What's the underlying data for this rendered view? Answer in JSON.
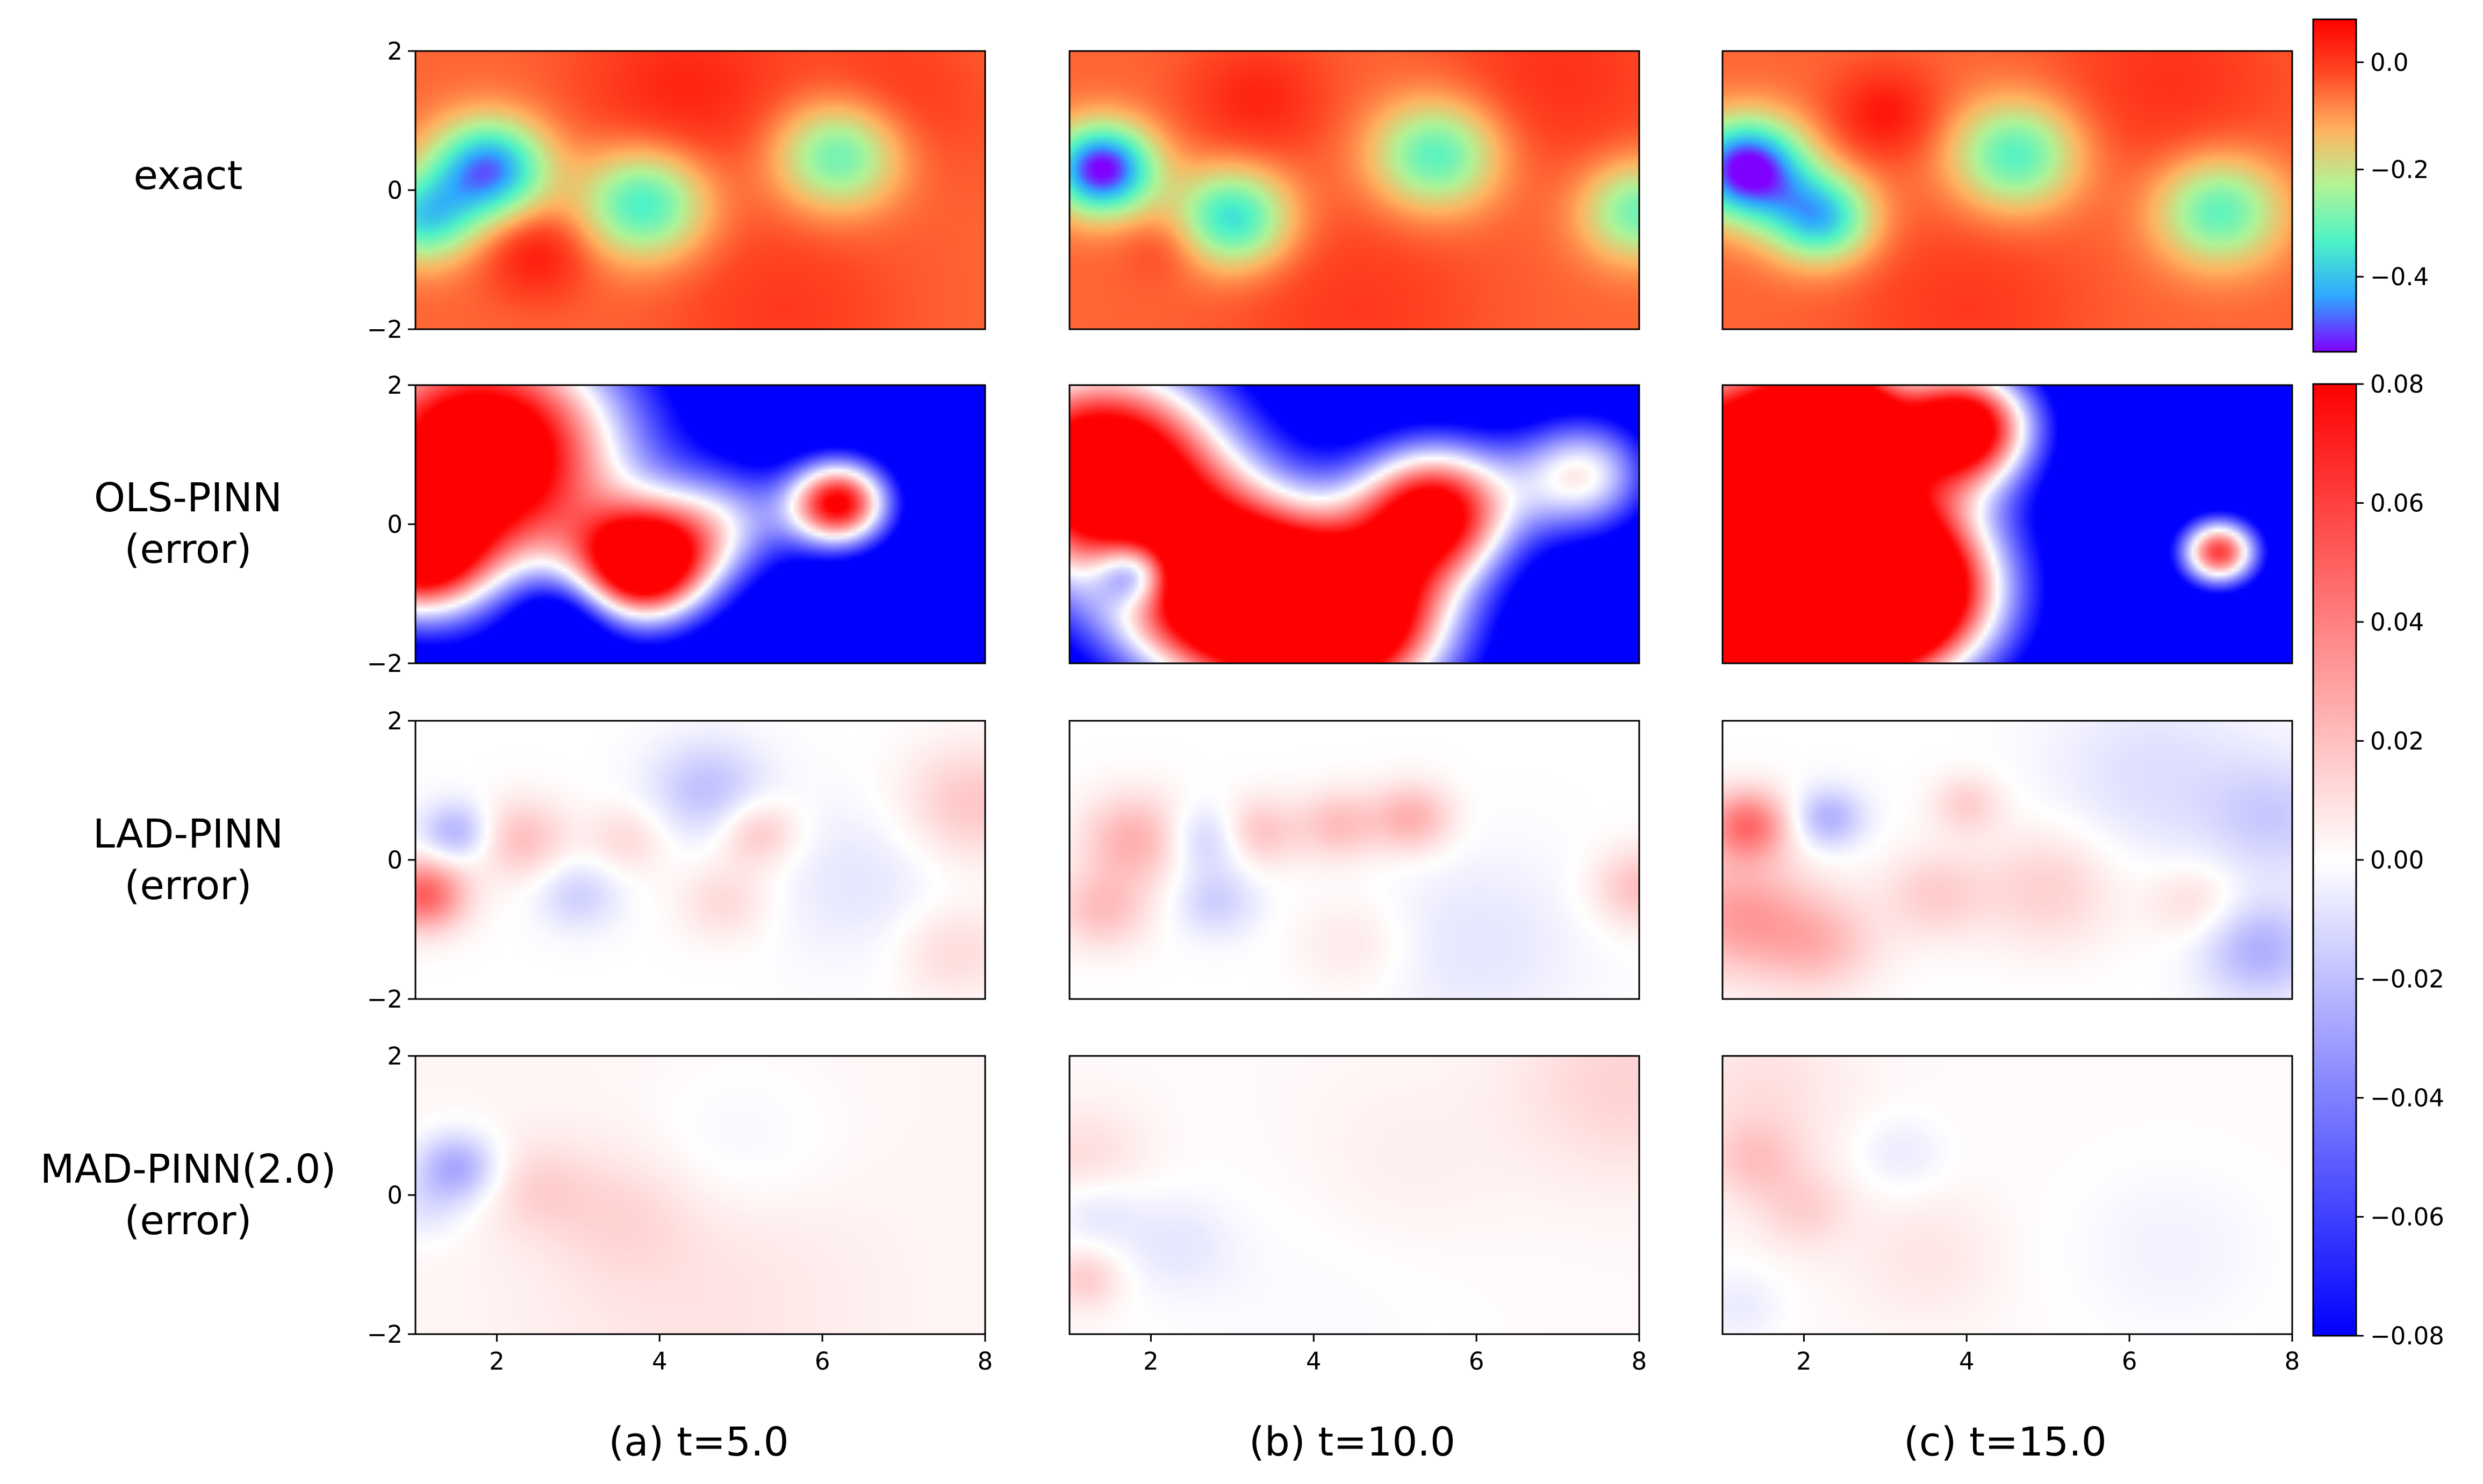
{
  "row_labels": [
    [
      "exact"
    ],
    [
      "OLS-PINN",
      "(error)"
    ],
    [
      "LAD-PINN",
      "(error)"
    ],
    [
      "MAD-PINN(2.0)",
      "(error)"
    ]
  ],
  "column_captions": [
    "(a) t=5.0",
    "(b) t=10.0",
    "(c) t=15.0"
  ],
  "chart_data": {
    "type": "heatmap",
    "layout": "4 rows x 3 columns",
    "x_range": [
      1,
      8
    ],
    "y_range": [
      -2,
      2
    ],
    "x_ticks": [
      "2",
      "4",
      "6",
      "8"
    ],
    "y_ticks": [
      "−2",
      "0",
      "2"
    ],
    "colorbars": [
      {
        "applies_to": "exact",
        "colormap": "rainbow",
        "range": [
          -0.54,
          0.08
        ],
        "ticks": [
          "0.0",
          "−0.2",
          "−0.4"
        ],
        "tick_values": [
          0.0,
          -0.2,
          -0.4
        ],
        "colors": [
          "#8000ff",
          "#2ea8ff",
          "#4df3c7",
          "#b2f396",
          "#ffb360",
          "#ff4a26",
          "#ff0000"
        ]
      },
      {
        "applies_to": "error rows",
        "colormap": "bwr",
        "range": [
          -0.08,
          0.08
        ],
        "ticks": [
          "0.08",
          "0.06",
          "0.04",
          "0.02",
          "0.00",
          "−0.02",
          "−0.04",
          "−0.06",
          "−0.08"
        ],
        "tick_values": [
          0.08,
          0.06,
          0.04,
          0.02,
          0.0,
          -0.02,
          -0.04,
          -0.06,
          -0.08
        ],
        "colors": [
          "#0000ff",
          "#ffffff",
          "#ff0000"
        ]
      }
    ],
    "panels": [
      [
        {
          "base": -0.05,
          "blobs": [
            [
              1.9,
              0.3,
              0.5,
              -0.42
            ],
            [
              1.1,
              -0.4,
              0.45,
              -0.3
            ],
            [
              3.8,
              -0.2,
              0.55,
              -0.3
            ],
            [
              6.2,
              0.5,
              0.55,
              -0.28
            ],
            [
              2.5,
              -0.9,
              0.45,
              0.1
            ],
            [
              4.3,
              1.4,
              0.9,
              0.08
            ],
            [
              6.8,
              1.2,
              0.8,
              0.06
            ],
            [
              5.5,
              -1.7,
              1.0,
              0.05
            ]
          ]
        },
        {
          "base": -0.05,
          "blobs": [
            [
              1.4,
              0.3,
              0.45,
              -0.5
            ],
            [
              3.0,
              -0.4,
              0.5,
              -0.32
            ],
            [
              5.5,
              0.5,
              0.55,
              -0.28
            ],
            [
              8.0,
              -0.3,
              0.5,
              -0.25
            ],
            [
              3.3,
              1.3,
              0.6,
              0.08
            ],
            [
              2.2,
              -0.8,
              0.35,
              0.05
            ],
            [
              7.0,
              1.6,
              1.0,
              0.06
            ],
            [
              4.5,
              -1.7,
              1.1,
              0.05
            ]
          ]
        },
        {
          "base": -0.05,
          "blobs": [
            [
              1.3,
              0.3,
              0.5,
              -0.52
            ],
            [
              2.2,
              -0.4,
              0.45,
              -0.35
            ],
            [
              4.6,
              0.5,
              0.55,
              -0.28
            ],
            [
              7.1,
              -0.3,
              0.55,
              -0.27
            ],
            [
              3.0,
              1.1,
              0.45,
              0.1
            ],
            [
              6.5,
              1.5,
              1.0,
              0.06
            ],
            [
              4.0,
              -1.7,
              1.0,
              0.05
            ]
          ]
        }
      ],
      [
        {
          "base": -0.12,
          "blobs": [
            [
              1.8,
              1.0,
              1.3,
              0.25
            ],
            [
              1.0,
              -0.5,
              0.6,
              0.15
            ],
            [
              3.8,
              -0.6,
              0.6,
              0.22
            ],
            [
              6.2,
              0.3,
              0.45,
              0.2
            ],
            [
              4.8,
              0.0,
              0.6,
              0.08
            ],
            [
              2.8,
              -1.3,
              0.5,
              -0.05
            ]
          ]
        },
        {
          "base": -0.12,
          "blobs": [
            [
              1.4,
              0.8,
              1.1,
              0.25
            ],
            [
              3.0,
              -1.0,
              1.0,
              0.25
            ],
            [
              4.5,
              -1.4,
              0.9,
              0.22
            ],
            [
              5.5,
              0.2,
              0.7,
              0.2
            ],
            [
              7.3,
              0.7,
              0.6,
              0.12
            ],
            [
              1.8,
              -0.7,
              0.35,
              -0.1
            ]
          ]
        },
        {
          "base": -0.12,
          "blobs": [
            [
              1.5,
              0.6,
              1.3,
              0.3
            ],
            [
              1.6,
              -1.5,
              0.9,
              0.3
            ],
            [
              3.2,
              -1.0,
              0.9,
              0.25
            ],
            [
              4.0,
              1.4,
              0.6,
              0.2
            ],
            [
              7.1,
              -0.4,
              0.35,
              0.18
            ],
            [
              2.4,
              1.6,
              0.5,
              0.15
            ]
          ]
        }
      ],
      [
        {
          "base": 0.0,
          "blobs": [
            [
              1.1,
              -0.5,
              0.35,
              0.05
            ],
            [
              1.5,
              0.4,
              0.3,
              -0.025
            ],
            [
              2.3,
              0.3,
              0.4,
              0.02
            ],
            [
              3.0,
              -0.5,
              0.35,
              -0.015
            ],
            [
              3.6,
              0.3,
              0.35,
              0.012
            ],
            [
              4.6,
              1.0,
              0.5,
              -0.02
            ],
            [
              5.2,
              0.4,
              0.35,
              0.02
            ],
            [
              4.8,
              -0.6,
              0.4,
              0.012
            ],
            [
              7.8,
              0.8,
              0.6,
              0.018
            ],
            [
              7.6,
              -1.3,
              0.5,
              0.012
            ],
            [
              6.5,
              -0.3,
              0.8,
              -0.008
            ]
          ]
        },
        {
          "base": 0.0,
          "blobs": [
            [
              1.8,
              0.3,
              0.45,
              0.025
            ],
            [
              1.4,
              -0.7,
              0.4,
              0.02
            ],
            [
              2.7,
              0.3,
              0.35,
              -0.018
            ],
            [
              3.3,
              0.4,
              0.35,
              0.02
            ],
            [
              2.8,
              -0.6,
              0.35,
              -0.015
            ],
            [
              4.3,
              0.5,
              0.35,
              0.02
            ],
            [
              5.2,
              0.6,
              0.35,
              0.025
            ],
            [
              8.0,
              -0.4,
              0.4,
              0.02
            ],
            [
              6.0,
              -1.2,
              0.9,
              -0.008
            ],
            [
              4.5,
              -1.2,
              0.5,
              0.008
            ]
          ]
        },
        {
          "base": 0.0,
          "blobs": [
            [
              1.3,
              0.5,
              0.35,
              0.045
            ],
            [
              1.2,
              -0.8,
              0.6,
              0.03
            ],
            [
              2.3,
              0.6,
              0.3,
              -0.025
            ],
            [
              2.2,
              -1.2,
              0.5,
              0.02
            ],
            [
              3.6,
              -0.5,
              0.45,
              0.015
            ],
            [
              4.0,
              0.8,
              0.3,
              0.015
            ],
            [
              5.0,
              -0.4,
              0.6,
              0.015
            ],
            [
              6.8,
              -0.6,
              0.4,
              0.012
            ],
            [
              7.6,
              -1.3,
              0.5,
              -0.025
            ],
            [
              6.3,
              1.2,
              0.9,
              -0.01
            ],
            [
              7.8,
              0.6,
              0.6,
              -0.015
            ]
          ]
        }
      ],
      [
        {
          "base": 0.003,
          "blobs": [
            [
              1.5,
              0.4,
              0.35,
              -0.03
            ],
            [
              1.1,
              -0.2,
              0.35,
              -0.01
            ],
            [
              2.5,
              0.1,
              0.45,
              0.01
            ],
            [
              3.5,
              -0.3,
              0.6,
              0.008
            ],
            [
              5.0,
              0.8,
              0.8,
              -0.006
            ],
            [
              4.5,
              -1.5,
              1.3,
              0.006
            ]
          ]
        },
        {
          "base": 0.002,
          "blobs": [
            [
              1.2,
              0.5,
              0.5,
              0.01
            ],
            [
              1.2,
              -1.2,
              0.3,
              0.015
            ],
            [
              1.3,
              -0.2,
              0.4,
              -0.01
            ],
            [
              2.3,
              -0.7,
              0.5,
              -0.008
            ],
            [
              7.8,
              1.6,
              0.9,
              0.012
            ],
            [
              5.0,
              0.3,
              1.0,
              0.004
            ],
            [
              4.0,
              -1.5,
              1.5,
              -0.004
            ]
          ]
        },
        {
          "base": 0.002,
          "blobs": [
            [
              1.4,
              0.5,
              0.4,
              0.015
            ],
            [
              2.0,
              -0.2,
              0.4,
              0.012
            ],
            [
              1.5,
              1.5,
              0.7,
              0.008
            ],
            [
              3.2,
              0.6,
              0.4,
              -0.008
            ],
            [
              6.5,
              -0.8,
              1.0,
              -0.006
            ],
            [
              1.2,
              -1.6,
              0.4,
              -0.008
            ],
            [
              3.5,
              -0.9,
              0.6,
              0.006
            ]
          ]
        }
      ]
    ]
  }
}
